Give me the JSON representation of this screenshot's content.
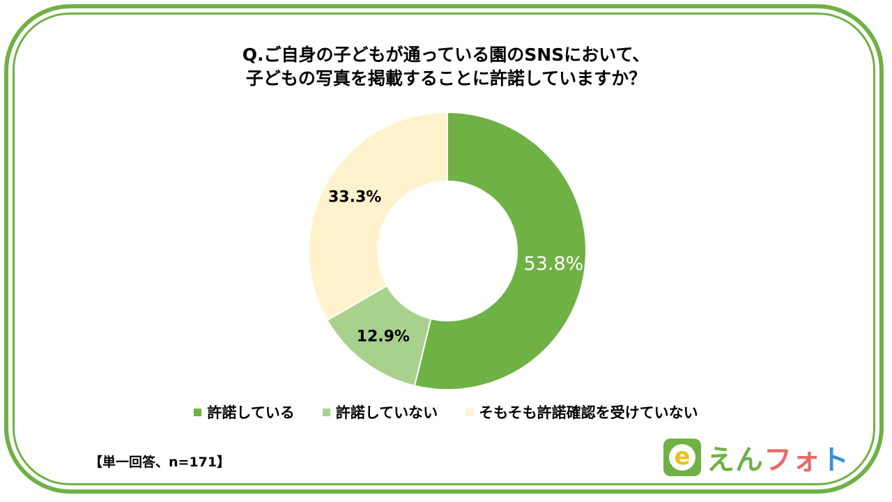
{
  "title_lines": [
    "Q.ご自身の子どもが通っている園のSNSにおいて、",
    "子どもの写真を掲載することに許諾していますか？"
  ],
  "chart_data": {
    "type": "pie",
    "donut": true,
    "categories": [
      "許諾している",
      "許諾していない",
      "そもそも許諾確認を受けていない"
    ],
    "values": [
      53.8,
      12.9,
      33.3
    ],
    "value_labels": [
      "53.8%",
      "12.9%",
      "33.3%"
    ],
    "colors": [
      "#6fb144",
      "#a9d18e",
      "#fff2cc"
    ],
    "label_colors": [
      "#ffffff",
      "#000000",
      "#000000"
    ],
    "legend_position": "bottom"
  },
  "note": "【単一回答、n=171】",
  "logo": {
    "text_1": "えん",
    "text_2": "フォ",
    "text_3": "ト",
    "mark": "e"
  }
}
